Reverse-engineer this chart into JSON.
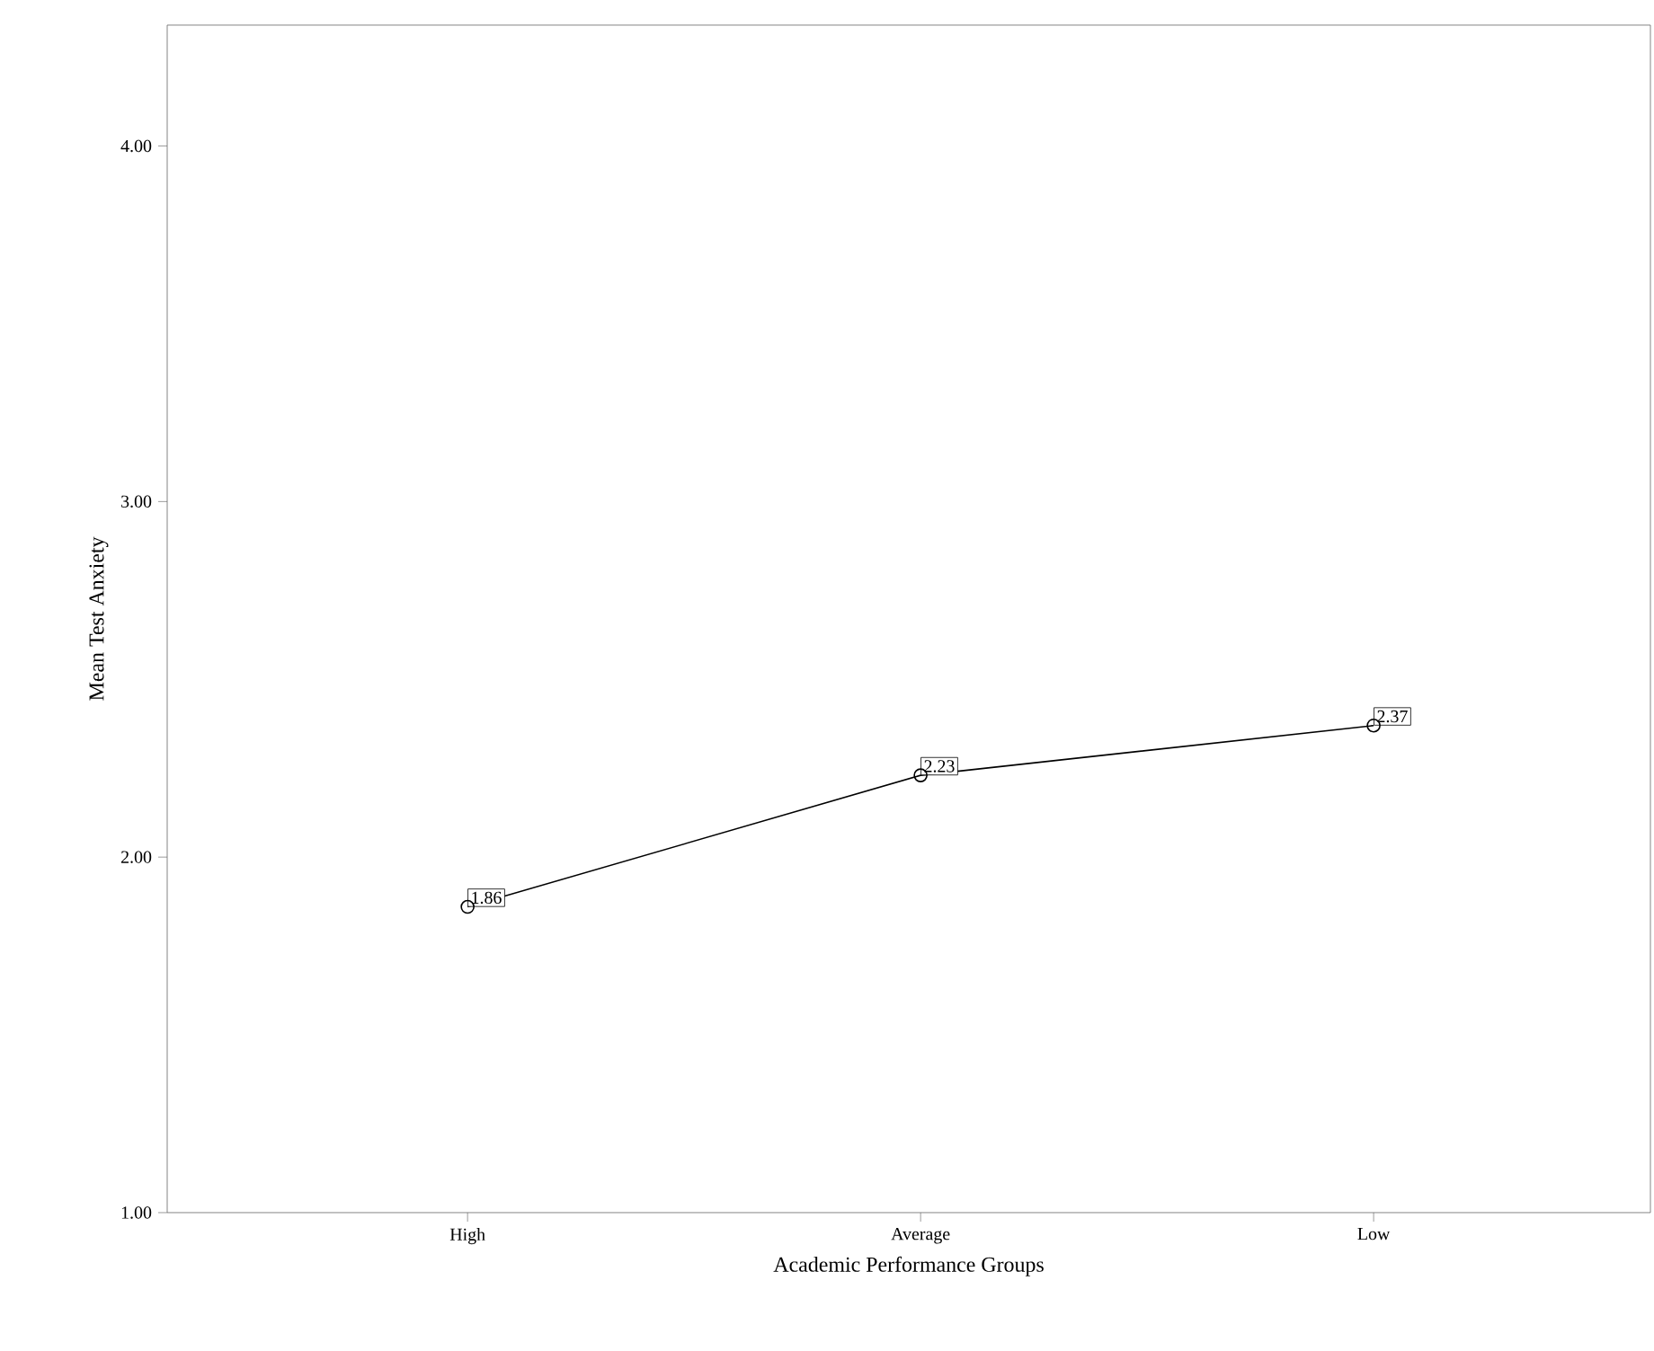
{
  "chart_data": {
    "type": "line",
    "xlabel": "Academic Performance Groups",
    "ylabel": "Mean Test Anxiety",
    "categories": [
      "High",
      "Average",
      "Low"
    ],
    "values": [
      1.86,
      2.23,
      2.37
    ],
    "color": "#000000",
    "marker": "circle",
    "line_style": "solid",
    "data_labels": true,
    "grid": false,
    "ylim": [
      1,
      4.34
    ],
    "yticks": [
      {
        "value": 1,
        "label": "1.00"
      },
      {
        "value": 2,
        "label": "2.00"
      },
      {
        "value": 3,
        "label": "3.00"
      },
      {
        "value": 4,
        "label": "4.00"
      }
    ]
  }
}
